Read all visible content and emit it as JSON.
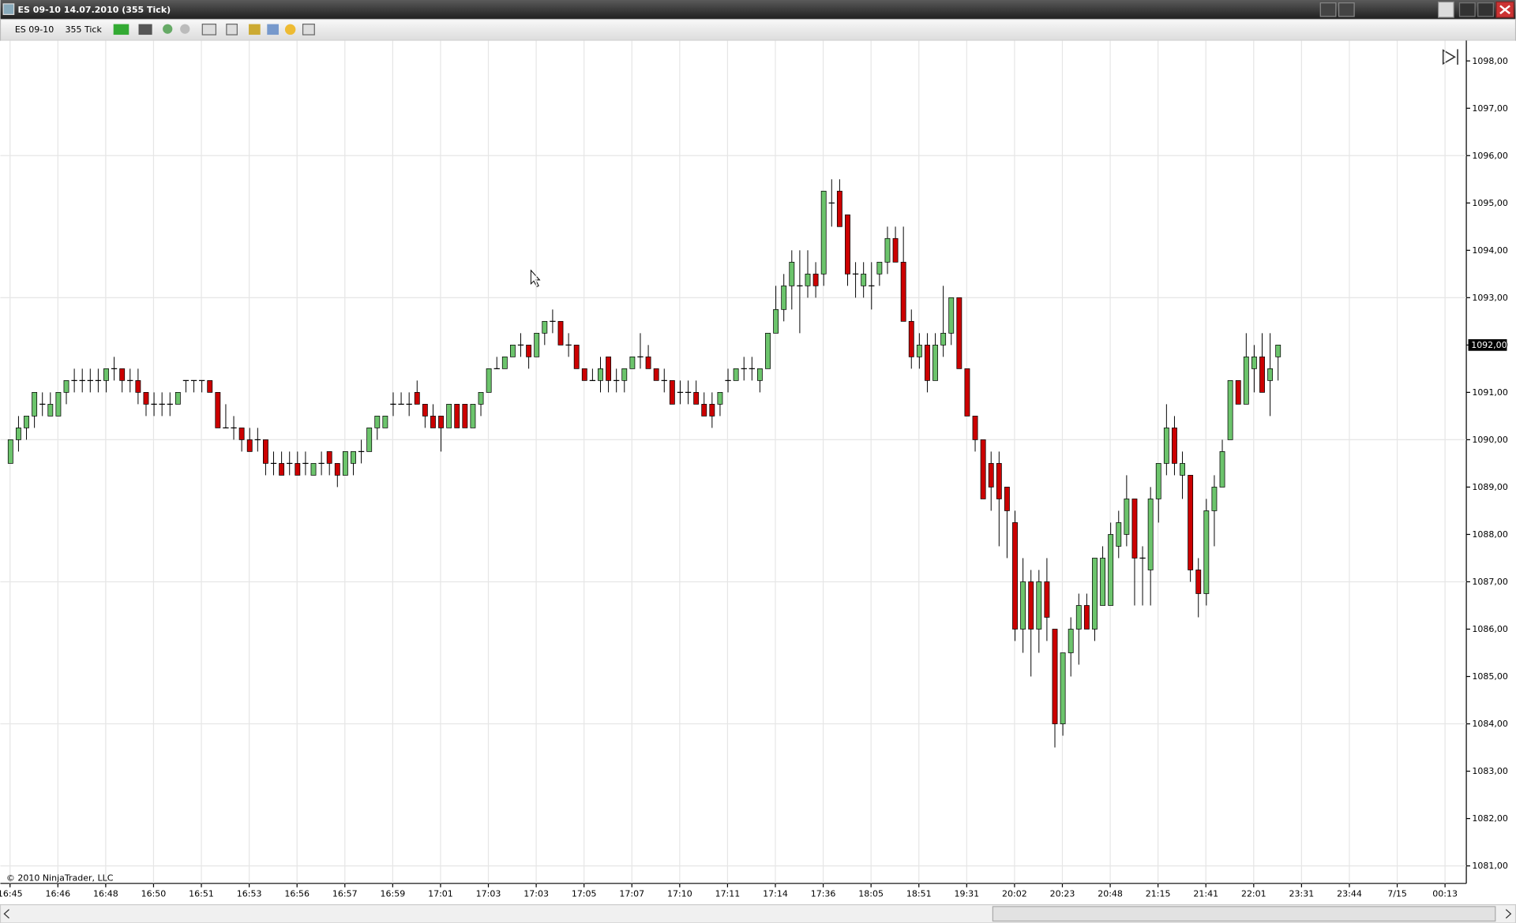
{
  "window_title": "ES 09-10  14.07.2010 (355 Tick)",
  "toolbar": {
    "instrument": "ES 09-10",
    "period": "355 Tick"
  },
  "copyright": "© 2010 NinjaTrader, LLC",
  "chart_data": {
    "type": "candlestick",
    "up_color": "#6cc46c",
    "down_color": "#cc0000",
    "ylim": [
      1080.63,
      1098.43
    ],
    "yticks": [
      {
        "value": 1081,
        "label": "1081,00"
      },
      {
        "value": 1082,
        "label": "1082,00"
      },
      {
        "value": 1083,
        "label": "1083,00"
      },
      {
        "value": 1084,
        "label": "1084,00"
      },
      {
        "value": 1085,
        "label": "1085,00"
      },
      {
        "value": 1086,
        "label": "1086,00"
      },
      {
        "value": 1087,
        "label": "1087,00"
      },
      {
        "value": 1088,
        "label": "1088,00"
      },
      {
        "value": 1089,
        "label": "1089,00"
      },
      {
        "value": 1090,
        "label": "1090,00"
      },
      {
        "value": 1091,
        "label": "1091,00"
      },
      {
        "value": 1092,
        "label": "1092,00"
      },
      {
        "value": 1093,
        "label": "1093,00"
      },
      {
        "value": 1094,
        "label": "1094,00"
      },
      {
        "value": 1095,
        "label": "1095,00"
      },
      {
        "value": 1096,
        "label": "1096,00"
      },
      {
        "value": 1097,
        "label": "1097,00"
      },
      {
        "value": 1098,
        "label": "1098,00"
      }
    ],
    "ygrid": [
      1081,
      1084,
      1087,
      1090,
      1093,
      1096
    ],
    "xlim": [
      -1.21,
      182.67
    ],
    "xticks": [
      {
        "value": 0,
        "label": "16:45"
      },
      {
        "value": 6,
        "label": "16:46"
      },
      {
        "value": 12,
        "label": "16:48"
      },
      {
        "value": 18,
        "label": "16:50"
      },
      {
        "value": 24,
        "label": "16:51"
      },
      {
        "value": 30,
        "label": "16:53"
      },
      {
        "value": 36,
        "label": "16:56"
      },
      {
        "value": 42,
        "label": "16:57"
      },
      {
        "value": 48,
        "label": "16:59"
      },
      {
        "value": 54,
        "label": "17:01"
      },
      {
        "value": 60,
        "label": "17:03"
      },
      {
        "value": 66,
        "label": "17:03"
      },
      {
        "value": 72,
        "label": "17:05"
      },
      {
        "value": 78,
        "label": "17:07"
      },
      {
        "value": 84,
        "label": "17:10"
      },
      {
        "value": 90,
        "label": "17:11"
      },
      {
        "value": 96,
        "label": "17:14"
      },
      {
        "value": 102,
        "label": "17:36"
      },
      {
        "value": 108,
        "label": "18:05"
      },
      {
        "value": 114,
        "label": "18:51"
      },
      {
        "value": 120,
        "label": "19:31"
      },
      {
        "value": 126,
        "label": "20:02"
      },
      {
        "value": 132,
        "label": "20:23"
      },
      {
        "value": 138,
        "label": "20:48"
      },
      {
        "value": 144,
        "label": "21:15"
      },
      {
        "value": 150,
        "label": "21:41"
      },
      {
        "value": 156,
        "label": "22:01"
      },
      {
        "value": 162,
        "label": "23:31"
      },
      {
        "value": 168,
        "label": "23:44"
      },
      {
        "value": 174,
        "label": "7/15"
      },
      {
        "value": 180,
        "label": "00:13"
      }
    ],
    "last_price": {
      "value": 1092,
      "label": "1092,00"
    },
    "candles": [
      [
        1089.5,
        1090,
        1089.5,
        1090
      ],
      [
        1090,
        1090.5,
        1089.75,
        1090.25
      ],
      [
        1090.25,
        1090.5,
        1090,
        1090.5
      ],
      [
        1090.5,
        1091,
        1090.25,
        1091
      ],
      [
        1090.75,
        1091,
        1090.5,
        1090.75
      ],
      [
        1090.5,
        1091,
        1090.5,
        1090.75
      ],
      [
        1090.5,
        1091,
        1090.5,
        1091
      ],
      [
        1091,
        1091.25,
        1090.75,
        1091.25
      ],
      [
        1091.25,
        1091.5,
        1091,
        1091.25
      ],
      [
        1091.25,
        1091.5,
        1091,
        1091.25
      ],
      [
        1091.25,
        1091.5,
        1091,
        1091.25
      ],
      [
        1091.25,
        1091.5,
        1091,
        1091.25
      ],
      [
        1091.25,
        1091.5,
        1091,
        1091.5
      ],
      [
        1091.5,
        1091.75,
        1091.25,
        1091.5
      ],
      [
        1091.5,
        1091.5,
        1091,
        1091.25
      ],
      [
        1091.25,
        1091.5,
        1091,
        1091.25
      ],
      [
        1091.25,
        1091.5,
        1090.75,
        1091
      ],
      [
        1091,
        1091,
        1090.5,
        1090.75
      ],
      [
        1090.75,
        1091,
        1090.5,
        1090.75
      ],
      [
        1090.75,
        1091,
        1090.5,
        1090.75
      ],
      [
        1090.75,
        1091,
        1090.5,
        1090.75
      ],
      [
        1090.75,
        1091,
        1090.75,
        1091
      ],
      [
        1091.25,
        1091.25,
        1091,
        1091.25
      ],
      [
        1091.25,
        1091.25,
        1091,
        1091.25
      ],
      [
        1091.25,
        1091.25,
        1091,
        1091.25
      ],
      [
        1091.25,
        1091.25,
        1091,
        1091
      ],
      [
        1091,
        1091,
        1090.25,
        1090.25
      ],
      [
        1090.25,
        1090.75,
        1090.25,
        1090.25
      ],
      [
        1090.25,
        1090.5,
        1090,
        1090.25
      ],
      [
        1090.25,
        1090.25,
        1089.75,
        1090
      ],
      [
        1090,
        1090.25,
        1089.75,
        1089.75
      ],
      [
        1090,
        1090.25,
        1089.75,
        1090
      ],
      [
        1090,
        1090,
        1089.25,
        1089.5
      ],
      [
        1089.5,
        1089.75,
        1089.25,
        1089.5
      ],
      [
        1089.5,
        1089.75,
        1089.25,
        1089.25
      ],
      [
        1089.5,
        1089.75,
        1089.25,
        1089.5
      ],
      [
        1089.5,
        1089.75,
        1089.25,
        1089.25
      ],
      [
        1089.5,
        1089.75,
        1089.25,
        1089.5
      ],
      [
        1089.25,
        1089.5,
        1089.25,
        1089.5
      ],
      [
        1089.5,
        1089.75,
        1089.25,
        1089.5
      ],
      [
        1089.75,
        1089.75,
        1089.25,
        1089.5
      ],
      [
        1089.5,
        1089.5,
        1089,
        1089.25
      ],
      [
        1089.25,
        1089.75,
        1089.25,
        1089.75
      ],
      [
        1089.5,
        1089.75,
        1089.25,
        1089.75
      ],
      [
        1089.75,
        1090,
        1089.5,
        1089.75
      ],
      [
        1089.75,
        1090.25,
        1089.75,
        1090.25
      ],
      [
        1090.25,
        1090.5,
        1090,
        1090.5
      ],
      [
        1090.25,
        1090.5,
        1090.25,
        1090.5
      ],
      [
        1090.75,
        1091,
        1090.5,
        1090.75
      ],
      [
        1090.75,
        1091,
        1090.75,
        1090.75
      ],
      [
        1090.75,
        1091,
        1090.5,
        1090.75
      ],
      [
        1091,
        1091.25,
        1090.75,
        1090.75
      ],
      [
        1090.75,
        1090.75,
        1090.25,
        1090.5
      ],
      [
        1090.5,
        1090.75,
        1090.25,
        1090.25
      ],
      [
        1090.5,
        1090.5,
        1089.75,
        1090.25
      ],
      [
        1090.25,
        1090.75,
        1090.25,
        1090.75
      ],
      [
        1090.75,
        1090.75,
        1090.25,
        1090.25
      ],
      [
        1090.75,
        1090.75,
        1090.25,
        1090.25
      ],
      [
        1090.25,
        1090.75,
        1090.25,
        1090.75
      ],
      [
        1090.75,
        1091,
        1090.5,
        1091
      ],
      [
        1091,
        1091.5,
        1091,
        1091.5
      ],
      [
        1091.5,
        1091.75,
        1091.5,
        1091.5
      ],
      [
        1091.5,
        1091.75,
        1091.5,
        1091.75
      ],
      [
        1091.75,
        1092,
        1091.75,
        1092
      ],
      [
        1092,
        1092.25,
        1091.75,
        1092
      ],
      [
        1092,
        1092,
        1091.5,
        1091.75
      ],
      [
        1091.75,
        1092.25,
        1091.75,
        1092.25
      ],
      [
        1092.25,
        1092.5,
        1092,
        1092.5
      ],
      [
        1092.5,
        1092.75,
        1092.25,
        1092.5
      ],
      [
        1092.5,
        1092.5,
        1092,
        1092
      ],
      [
        1092,
        1092.25,
        1091.75,
        1092
      ],
      [
        1092,
        1092,
        1091.5,
        1091.5
      ],
      [
        1091.5,
        1091.5,
        1091.25,
        1091.25
      ],
      [
        1091.25,
        1091.5,
        1091.25,
        1091.25
      ],
      [
        1091.25,
        1091.75,
        1091,
        1091.5
      ],
      [
        1091.75,
        1091.75,
        1091,
        1091.25
      ],
      [
        1091.25,
        1091.5,
        1091,
        1091.25
      ],
      [
        1091.25,
        1091.5,
        1091,
        1091.5
      ],
      [
        1091.5,
        1091.75,
        1091.5,
        1091.75
      ],
      [
        1091.75,
        1092.25,
        1091.5,
        1091.75
      ],
      [
        1091.75,
        1092,
        1091.5,
        1091.5
      ],
      [
        1091.5,
        1091.5,
        1091.25,
        1091.25
      ],
      [
        1091.25,
        1091.5,
        1091,
        1091.25
      ],
      [
        1091.25,
        1091.25,
        1090.75,
        1090.75
      ],
      [
        1091,
        1091.25,
        1090.75,
        1091
      ],
      [
        1091,
        1091.25,
        1090.75,
        1091
      ],
      [
        1091,
        1091.25,
        1090.75,
        1090.75
      ],
      [
        1090.75,
        1091,
        1090.5,
        1090.5
      ],
      [
        1090.75,
        1091,
        1090.25,
        1090.5
      ],
      [
        1090.75,
        1091,
        1090.5,
        1091
      ],
      [
        1091.25,
        1091.5,
        1091,
        1091.25
      ],
      [
        1091.25,
        1091.5,
        1091.25,
        1091.5
      ],
      [
        1091.5,
        1091.75,
        1091.25,
        1091.5
      ],
      [
        1091.5,
        1091.75,
        1091.25,
        1091.5
      ],
      [
        1091.25,
        1091.5,
        1091,
        1091.5
      ],
      [
        1091.5,
        1092.25,
        1091.5,
        1092.25
      ],
      [
        1092.25,
        1093.25,
        1092.25,
        1092.75
      ],
      [
        1092.75,
        1093.5,
        1092.5,
        1093.25
      ],
      [
        1093.25,
        1094,
        1092.75,
        1093.75
      ],
      [
        1093.25,
        1094,
        1092.25,
        1093.25
      ],
      [
        1093.25,
        1094,
        1093,
        1093.5
      ],
      [
        1093.5,
        1093.75,
        1093,
        1093.25
      ],
      [
        1093.5,
        1095.25,
        1093.25,
        1095.25
      ],
      [
        1095,
        1095.5,
        1094.5,
        1095
      ],
      [
        1095.25,
        1095.5,
        1094.5,
        1094.5
      ],
      [
        1094.75,
        1094.75,
        1093.25,
        1093.5
      ],
      [
        1093.5,
        1093.75,
        1093,
        1093.5
      ],
      [
        1093.25,
        1093.75,
        1093,
        1093.5
      ],
      [
        1093.25,
        1093.75,
        1092.75,
        1093.25
      ],
      [
        1093.5,
        1093.75,
        1093.25,
        1093.75
      ],
      [
        1093.75,
        1094.5,
        1093.5,
        1094.25
      ],
      [
        1094.25,
        1094.5,
        1093.75,
        1093.75
      ],
      [
        1093.75,
        1094.5,
        1092.5,
        1092.5
      ],
      [
        1092.5,
        1092.75,
        1091.5,
        1091.75
      ],
      [
        1091.75,
        1092.25,
        1091.5,
        1092
      ],
      [
        1092,
        1092.25,
        1091,
        1091.25
      ],
      [
        1091.25,
        1092.25,
        1091.25,
        1092
      ],
      [
        1092,
        1093.25,
        1091.75,
        1092.25
      ],
      [
        1092.25,
        1093,
        1092,
        1093
      ],
      [
        1093,
        1093,
        1091.5,
        1091.5
      ],
      [
        1091.5,
        1091.5,
        1090.5,
        1090.5
      ],
      [
        1090.5,
        1090.5,
        1089.75,
        1090
      ],
      [
        1090,
        1090,
        1088.75,
        1088.75
      ],
      [
        1089.5,
        1089.75,
        1088.5,
        1089
      ],
      [
        1089.5,
        1089.75,
        1087.75,
        1088.75
      ],
      [
        1089,
        1089,
        1087.5,
        1088.5
      ],
      [
        1088.25,
        1088.5,
        1085.75,
        1086
      ],
      [
        1086,
        1087.5,
        1085.5,
        1087
      ],
      [
        1087,
        1087.25,
        1085,
        1086
      ],
      [
        1086,
        1087.25,
        1085.5,
        1087
      ],
      [
        1087,
        1087.5,
        1085.75,
        1086.25
      ],
      [
        1086,
        1086,
        1083.5,
        1084
      ],
      [
        1084,
        1085.5,
        1083.75,
        1085.5
      ],
      [
        1085.5,
        1086.25,
        1085,
        1086
      ],
      [
        1086,
        1086.75,
        1085.25,
        1086.5
      ],
      [
        1086.5,
        1086.75,
        1086,
        1086
      ],
      [
        1086,
        1087.5,
        1085.75,
        1087.5
      ],
      [
        1086.5,
        1087.75,
        1086.5,
        1087.5
      ],
      [
        1086.5,
        1088.25,
        1086.5,
        1088
      ],
      [
        1087.75,
        1088.5,
        1087.5,
        1088.25
      ],
      [
        1088,
        1089.25,
        1087.75,
        1088.75
      ],
      [
        1088.75,
        1088.75,
        1086.5,
        1087.5
      ],
      [
        1087.5,
        1087.75,
        1086.5,
        1087.5
      ],
      [
        1087.25,
        1089,
        1086.5,
        1088.75
      ],
      [
        1088.75,
        1089.5,
        1088.25,
        1089.5
      ],
      [
        1089.5,
        1090.75,
        1089.25,
        1090.25
      ],
      [
        1090.25,
        1090.5,
        1089.25,
        1089.5
      ],
      [
        1089.25,
        1089.75,
        1088.75,
        1089.5
      ],
      [
        1089.25,
        1089.25,
        1087,
        1087.25
      ],
      [
        1087.25,
        1087.5,
        1086.25,
        1086.75
      ],
      [
        1086.75,
        1088.75,
        1086.5,
        1088.5
      ],
      [
        1088.5,
        1089.25,
        1087.75,
        1089
      ],
      [
        1089,
        1090,
        1089,
        1089.75
      ],
      [
        1090,
        1091.25,
        1090,
        1091.25
      ],
      [
        1091.25,
        1091.25,
        1090.75,
        1090.75
      ],
      [
        1090.75,
        1092.25,
        1090.75,
        1091.75
      ],
      [
        1091.5,
        1092,
        1091,
        1091.75
      ],
      [
        1091.75,
        1092.25,
        1091,
        1091
      ],
      [
        1091.25,
        1092.25,
        1090.5,
        1091.5
      ],
      [
        1091.75,
        1092,
        1091.25,
        1092
      ]
    ]
  }
}
